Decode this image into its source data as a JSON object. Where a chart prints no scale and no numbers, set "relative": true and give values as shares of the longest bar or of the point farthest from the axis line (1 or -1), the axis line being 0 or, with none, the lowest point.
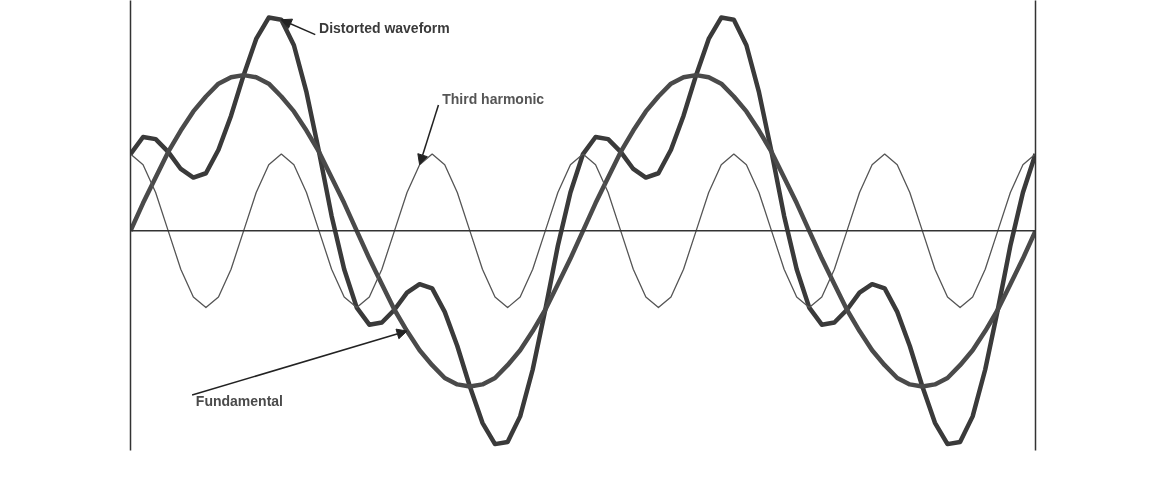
{
  "chart_data": {
    "type": "line",
    "relative": true,
    "grid": false,
    "marker": "none",
    "line_style": "solid",
    "categories": [
      null,
      null,
      null,
      null,
      null,
      null,
      null,
      null,
      null,
      null,
      null,
      null,
      null,
      null,
      null,
      null,
      null,
      null,
      null,
      null,
      null,
      null,
      null,
      null,
      null,
      null,
      null,
      null,
      null,
      null,
      null,
      null,
      null,
      null,
      null,
      null,
      null,
      null,
      null,
      null,
      null,
      null,
      null,
      null,
      null,
      null,
      null,
      null,
      null,
      null,
      null,
      null,
      null,
      null,
      null,
      null,
      null,
      null,
      null,
      null,
      null,
      null,
      null,
      null,
      null,
      null,
      null,
      null,
      null,
      null,
      null,
      null,
      null
    ],
    "series": [
      {
        "name": "Distorted waveform",
        "color": "#3a3a3a",
        "values": [
          0.36,
          0.44,
          0.43,
          0.37,
          0.29,
          0.25,
          0.27,
          0.38,
          0.54,
          0.73,
          0.9,
          1.0,
          0.99,
          0.87,
          0.65,
          0.37,
          0.07,
          -0.18,
          -0.36,
          -0.44,
          -0.43,
          -0.37,
          -0.29,
          -0.25,
          -0.27,
          -0.38,
          -0.54,
          -0.73,
          -0.9,
          -1.0,
          -0.99,
          -0.87,
          -0.65,
          -0.37,
          -0.07,
          0.18,
          0.36,
          0.44,
          0.43,
          0.37,
          0.29,
          0.25,
          0.27,
          0.38,
          0.54,
          0.73,
          0.9,
          1.0,
          0.99,
          0.87,
          0.65,
          0.37,
          0.07,
          -0.18,
          -0.36,
          -0.44,
          -0.43,
          -0.37,
          -0.29,
          -0.25,
          -0.27,
          -0.38,
          -0.54,
          -0.73,
          -0.9,
          -1.0,
          -0.99,
          -0.87,
          -0.65,
          -0.37,
          -0.07,
          0.18,
          0.36
        ]
      },
      {
        "name": "Fundamental",
        "color": "#4a4a4a",
        "values": [
          0,
          0.13,
          0.25,
          0.37,
          0.47,
          0.56,
          0.63,
          0.69,
          0.72,
          0.73,
          0.72,
          0.69,
          0.63,
          0.56,
          0.47,
          0.37,
          0.25,
          0.13,
          0,
          -0.13,
          -0.25,
          -0.37,
          -0.47,
          -0.56,
          -0.63,
          -0.69,
          -0.72,
          -0.73,
          -0.72,
          -0.69,
          -0.63,
          -0.56,
          -0.47,
          -0.37,
          -0.25,
          -0.13,
          0,
          0.13,
          0.25,
          0.37,
          0.47,
          0.56,
          0.63,
          0.69,
          0.72,
          0.73,
          0.72,
          0.69,
          0.63,
          0.56,
          0.47,
          0.37,
          0.25,
          0.13,
          0,
          -0.13,
          -0.25,
          -0.37,
          -0.47,
          -0.56,
          -0.63,
          -0.69,
          -0.72,
          -0.73,
          -0.72,
          -0.69,
          -0.63,
          -0.56,
          -0.47,
          -0.37,
          -0.25,
          -0.13,
          0
        ]
      },
      {
        "name": "Third harmonic",
        "color": "#555555",
        "values": [
          0.36,
          0.31,
          0.18,
          0,
          -0.18,
          -0.31,
          -0.36,
          -0.31,
          -0.18,
          0,
          0.18,
          0.31,
          0.36,
          0.31,
          0.18,
          0,
          -0.18,
          -0.31,
          -0.36,
          -0.31,
          -0.18,
          0,
          0.18,
          0.31,
          0.36,
          0.31,
          0.18,
          0,
          -0.18,
          -0.31,
          -0.36,
          -0.31,
          -0.18,
          0,
          0.18,
          0.31,
          0.36,
          0.31,
          0.18,
          0,
          -0.18,
          -0.31,
          -0.36,
          -0.31,
          -0.18,
          0,
          0.18,
          0.31,
          0.36,
          0.31,
          0.18,
          0,
          -0.18,
          -0.31,
          -0.36,
          -0.31,
          -0.18,
          0,
          0.18,
          0.31,
          0.36,
          0.31,
          0.18,
          0,
          -0.18,
          -0.31,
          -0.36,
          -0.31,
          -0.18,
          0,
          0.18,
          0.31,
          0.36
        ]
      }
    ]
  }
}
